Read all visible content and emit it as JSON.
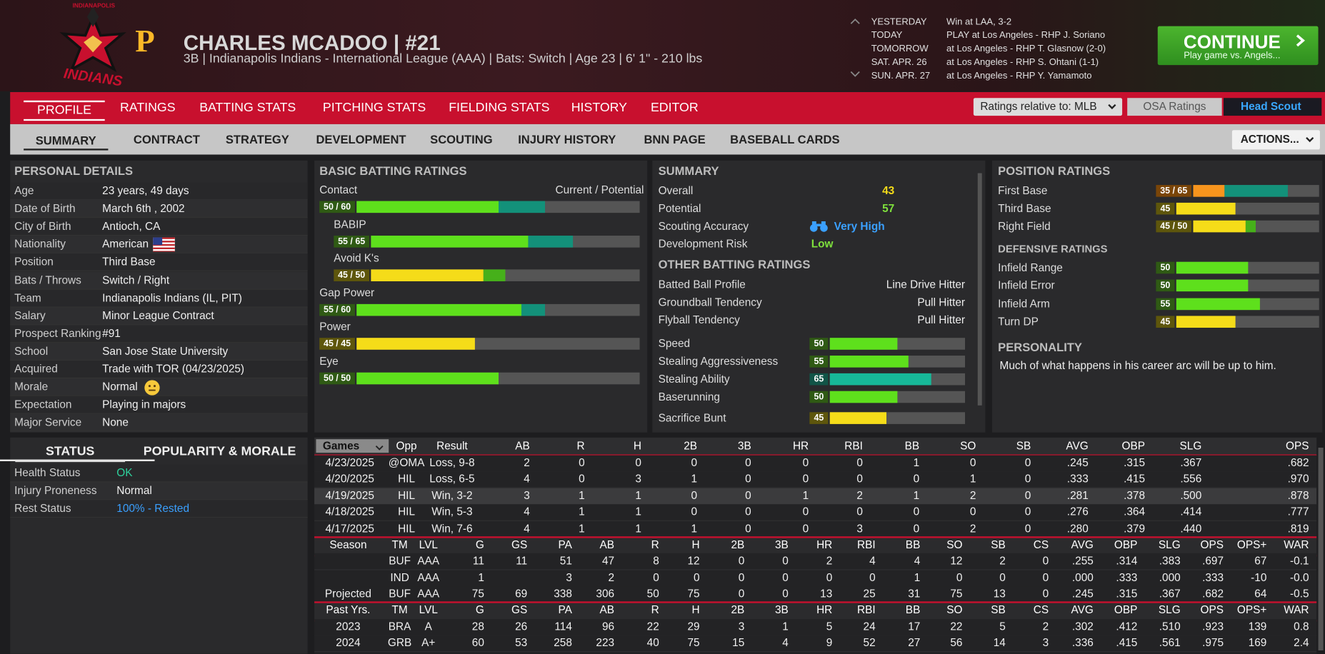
{
  "header": {
    "logo": {
      "top": "INDIANAPOLIS",
      "bottom": "INDIANS",
      "affiliate": "P"
    },
    "title": "CHARLES MCADOO  |  #21",
    "subtitle": "3B | Indianapolis Indians - International League (AAA)  |  Bats: Switch  |  Age 23  |  6' 1\" - 210 lbs"
  },
  "schedule": [
    [
      "YESTERDAY",
      "Win at LAA, 3-2"
    ],
    [
      "TODAY",
      "PLAY at Los Angeles - RHP J. Soriano"
    ],
    [
      "TOMORROW",
      "at Los Angeles - RHP T. Glasnow (2-0)"
    ],
    [
      "SAT. APR. 26",
      "at Los Angeles - RHP S. Ohtani (1-1)"
    ],
    [
      "SUN. APR. 27",
      "at Los Angeles - RHP Y. Yamamoto"
    ]
  ],
  "continue": {
    "label": "CONTINUE",
    "sub": "Play game vs. Angels..."
  },
  "tabs": [
    "PROFILE",
    "RATINGS",
    "BATTING STATS",
    "PITCHING STATS",
    "FIELDING STATS",
    "HISTORY",
    "EDITOR"
  ],
  "rating_controls": {
    "relative": "Ratings relative to: MLB",
    "osa": "OSA Ratings",
    "scout": "Head Scout"
  },
  "subtabs": [
    "SUMMARY",
    "CONTRACT",
    "STRATEGY",
    "DEVELOPMENT",
    "SCOUTING",
    "INJURY HISTORY",
    "BNN PAGE",
    "BASEBALL CARDS"
  ],
  "actions": "ACTIONS...",
  "personal_details": {
    "title": "PERSONAL DETAILS",
    "rows": [
      [
        "Age",
        "23 years, 49 days"
      ],
      [
        "Date of Birth",
        "March 6th , 2002"
      ],
      [
        "City of Birth",
        "Antioch, CA"
      ],
      [
        "Nationality",
        "American"
      ],
      [
        "Position",
        "Third Base"
      ],
      [
        "Bats / Throws",
        "Switch / Right"
      ],
      [
        "Team",
        "Indianapolis Indians (IL, PIT)"
      ],
      [
        "Salary",
        "Minor League Contract"
      ],
      [
        "Prospect Ranking",
        "#91"
      ],
      [
        "School",
        "San Jose State University"
      ],
      [
        "Acquired",
        "Trade with TOR (04/23/2025)"
      ],
      [
        "Morale",
        "Normal"
      ],
      [
        "Expectation",
        "Playing in majors"
      ],
      [
        "Major Service",
        "None"
      ]
    ]
  },
  "status": {
    "tabs": [
      "STATUS",
      "POPULARITY & MORALE"
    ],
    "rows": [
      [
        "Health Status",
        "OK"
      ],
      [
        "Injury Proneness",
        "Normal"
      ],
      [
        "Rest Status",
        "100% - Rested"
      ]
    ]
  },
  "batting_ratings": {
    "title": "BASIC BATTING RATINGS",
    "legend": "Current / Potential",
    "ratings": [
      {
        "name": "Contact",
        "label": "50 / 60",
        "current": 50,
        "potential": 60,
        "components": [
          {
            "name": "BABIP",
            "label": "55 / 65",
            "current": 55,
            "potential": 65
          },
          {
            "name": "Avoid K's",
            "label": "45 / 50",
            "current": 45,
            "potential": 50
          }
        ]
      },
      {
        "name": "Gap Power",
        "label": "55 / 60",
        "current": 55,
        "potential": 60
      },
      {
        "name": "Power",
        "label": "45 / 45",
        "current": 45,
        "potential": 45
      },
      {
        "name": "Eye",
        "label": "50 / 50",
        "current": 50,
        "potential": 50
      }
    ]
  },
  "summary": {
    "title": "SUMMARY",
    "rows": [
      [
        "Overall",
        43
      ],
      [
        "Potential",
        57
      ],
      [
        "Scouting Accuracy",
        "Very High"
      ],
      [
        "Development Risk",
        "Low"
      ]
    ],
    "other_title": "OTHER BATTING RATINGS",
    "other": [
      [
        "Batted Ball Profile",
        "Line Drive Hitter"
      ],
      [
        "Groundball Tendency",
        "Pull Hitter"
      ],
      [
        "Flyball Tendency",
        "Pull Hitter"
      ]
    ],
    "running": [
      {
        "name": "Speed",
        "current": 50
      },
      {
        "name": "Stealing Aggressiveness",
        "current": 55
      },
      {
        "name": "Stealing Ability",
        "current": 65
      },
      {
        "name": "Baserunning",
        "current": 50
      },
      {
        "name": "Sacrifice Bunt",
        "current": 45
      }
    ]
  },
  "position_ratings": {
    "title": "POSITION RATINGS",
    "positions": [
      {
        "name": "First Base",
        "label": "35 / 65",
        "current": 35,
        "potential": 65
      },
      {
        "name": "Third Base",
        "current": 45
      },
      {
        "name": "Right Field",
        "label": "45 / 50",
        "current": 45,
        "potential": 50
      }
    ],
    "defensive_title": "DEFENSIVE RATINGS",
    "defensive": [
      {
        "name": "Infield Range",
        "current": 50
      },
      {
        "name": "Infield Error",
        "current": 50
      },
      {
        "name": "Infield Arm",
        "current": 55
      },
      {
        "name": "Turn DP",
        "current": 45
      }
    ],
    "personality_title": "PERSONALITY",
    "personality": "Much of what happens in his career arc will be up to him."
  },
  "game_log": {
    "columns": [
      "Games",
      "Opp",
      "Result",
      "AB",
      "R",
      "H",
      "2B",
      "3B",
      "HR",
      "RBI",
      "BB",
      "SO",
      "SB",
      "AVG",
      "OBP",
      "SLG",
      "OPS"
    ],
    "rows": [
      [
        "4/23/2025",
        "@OMA",
        "Loss, 9-8",
        "2",
        "0",
        "0",
        "0",
        "0",
        "0",
        "0",
        "1",
        "0",
        "0",
        ".245",
        ".315",
        ".367",
        ".682"
      ],
      [
        "4/20/2025",
        "HIL",
        "Loss, 6-5",
        "4",
        "0",
        "3",
        "1",
        "0",
        "0",
        "0",
        "0",
        "1",
        "0",
        ".333",
        ".415",
        ".556",
        ".970"
      ],
      [
        "4/19/2025",
        "HIL",
        "Win, 3-2",
        "3",
        "1",
        "1",
        "0",
        "0",
        "1",
        "2",
        "1",
        "2",
        "0",
        ".281",
        ".378",
        ".500",
        ".878"
      ],
      [
        "4/18/2025",
        "HIL",
        "Win, 5-3",
        "4",
        "1",
        "1",
        "0",
        "0",
        "0",
        "0",
        "0",
        "0",
        "0",
        ".276",
        ".364",
        ".414",
        ".777"
      ],
      [
        "4/17/2025",
        "HIL",
        "Win, 7-6",
        "4",
        "1",
        "1",
        "1",
        "0",
        "0",
        "3",
        "0",
        "2",
        "0",
        ".280",
        ".379",
        ".440",
        ".819"
      ]
    ]
  },
  "season": {
    "columns": [
      "Season",
      "TM",
      "LVL",
      "G",
      "GS",
      "PA",
      "AB",
      "R",
      "H",
      "2B",
      "3B",
      "HR",
      "RBI",
      "BB",
      "SO",
      "SB",
      "CS",
      "AVG",
      "OBP",
      "SLG",
      "OPS",
      "OPS+",
      "WAR"
    ],
    "rows": [
      [
        null,
        "BUF",
        "AAA",
        "11",
        "11",
        "51",
        "47",
        "8",
        "12",
        "0",
        "0",
        "2",
        "4",
        "4",
        "12",
        "2",
        "0",
        ".255",
        ".314",
        ".383",
        ".697",
        "67",
        "-0.1"
      ],
      [
        null,
        "IND",
        "AAA",
        "1",
        null,
        "3",
        "2",
        "0",
        "0",
        "0",
        "0",
        "0",
        "0",
        "1",
        "0",
        "0",
        "0",
        ".000",
        ".333",
        ".000",
        ".333",
        "-10",
        "-0.0"
      ],
      [
        "Projected",
        "BUF",
        "AAA",
        "75",
        "69",
        "338",
        "306",
        "50",
        "75",
        "0",
        "0",
        "13",
        "25",
        "31",
        "75",
        "13",
        "0",
        ".245",
        ".315",
        ".367",
        ".682",
        "64",
        "-0.5"
      ]
    ]
  },
  "past": {
    "columns": [
      "Past Yrs.",
      "TM",
      "LVL",
      "G",
      "GS",
      "PA",
      "AB",
      "R",
      "H",
      "2B",
      "3B",
      "HR",
      "RBI",
      "BB",
      "SO",
      "SB",
      "CS",
      "AVG",
      "OBP",
      "SLG",
      "OPS",
      "OPS+",
      "WAR"
    ],
    "rows": [
      [
        "2023",
        "BRA",
        "A",
        "28",
        "26",
        "114",
        "96",
        "22",
        "29",
        "3",
        "1",
        "5",
        "24",
        "17",
        "22",
        "5",
        "2",
        ".302",
        ".412",
        ".510",
        ".923",
        "139",
        "0.8"
      ],
      [
        "2024",
        "GRB",
        "A+",
        "60",
        "53",
        "258",
        "223",
        "40",
        "75",
        "15",
        "4",
        "9",
        "52",
        "27",
        "56",
        "14",
        "3",
        ".336",
        ".415",
        ".561",
        ".975",
        "169",
        "2.4"
      ]
    ]
  }
}
